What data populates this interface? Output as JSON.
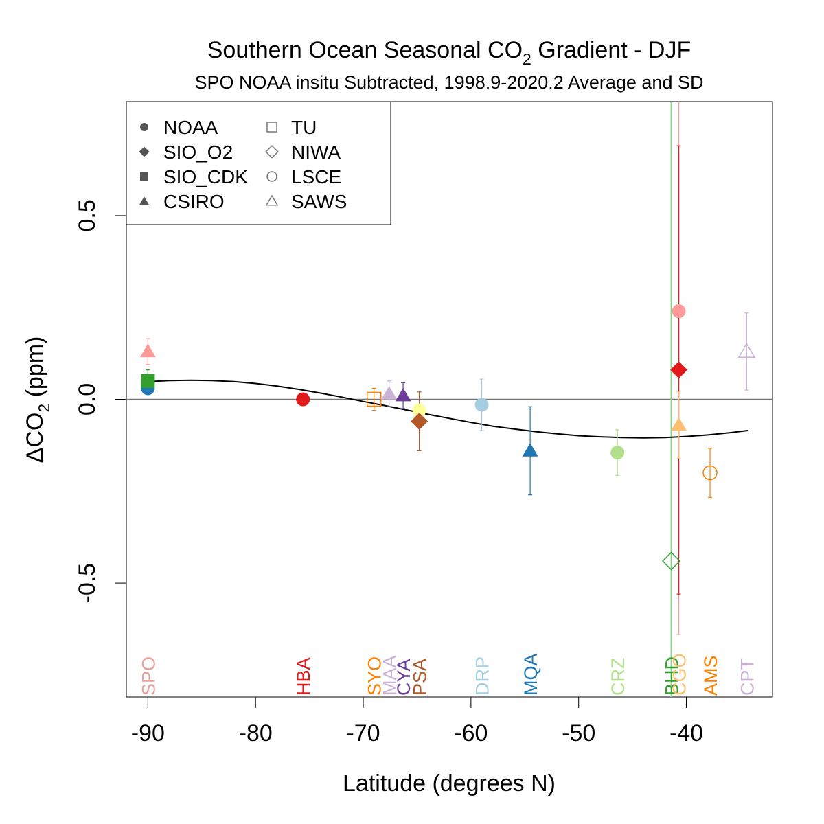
{
  "chart_data": {
    "type": "scatter",
    "title": "Southern Ocean Seasonal CO",
    "title_sub": "2",
    "title_rest": " Gradient - DJF",
    "subtitle": "SPO NOAA insitu Subtracted, 1998.9-2020.2 Average and SD",
    "xlabel": "Latitude (degrees N)",
    "ylabel_prefix": "ΔCO",
    "ylabel_sub": "2",
    "ylabel_suffix": " (ppm)",
    "xlim": [
      -92,
      -32
    ],
    "ylim": [
      -0.81,
      0.81
    ],
    "xticks": [
      -90,
      -80,
      -70,
      -60,
      -50,
      -40
    ],
    "xtick_labels": [
      "-90",
      "-80",
      "-70",
      "-60",
      "-50",
      "-40"
    ],
    "yticks": [
      -0.5,
      0.0,
      0.5
    ],
    "ytick_labels": [
      "-0.5",
      "0.0",
      "0.5"
    ],
    "grid": false,
    "legend_placement": "top-left",
    "legend": [
      {
        "name": "NOAA",
        "marker": "circle",
        "filled": true
      },
      {
        "name": "SIO_O2",
        "marker": "diamond",
        "filled": true
      },
      {
        "name": "SIO_CDK",
        "marker": "square",
        "filled": true
      },
      {
        "name": "CSIRO",
        "marker": "triangle",
        "filled": true
      },
      {
        "name": "TU",
        "marker": "square",
        "filled": false
      },
      {
        "name": "NIWA",
        "marker": "diamond",
        "filled": false
      },
      {
        "name": "LSCE",
        "marker": "circle",
        "filled": false
      },
      {
        "name": "SAWS",
        "marker": "triangle",
        "filled": false
      }
    ],
    "reference_line_y": 0.0,
    "vertical_line": {
      "x": -41.4,
      "color": "#8fd18f"
    },
    "fit_curve": {
      "x": [
        -90,
        -88,
        -86,
        -84,
        -82,
        -80,
        -78,
        -76,
        -74,
        -72,
        -70,
        -68,
        -66,
        -64,
        -62,
        -60,
        -58,
        -56,
        -54,
        -52,
        -50,
        -48,
        -46,
        -44,
        -42,
        -40,
        -38,
        -36,
        -34.3
      ],
      "y": [
        0.048,
        0.051,
        0.052,
        0.051,
        0.048,
        0.043,
        0.036,
        0.027,
        0.017,
        0.006,
        -0.006,
        -0.017,
        -0.029,
        -0.041,
        -0.052,
        -0.063,
        -0.073,
        -0.081,
        -0.088,
        -0.094,
        -0.099,
        -0.102,
        -0.104,
        -0.105,
        -0.104,
        -0.101,
        -0.097,
        -0.091,
        -0.085
      ]
    },
    "points": [
      {
        "station": "SPO",
        "lab": "NOAA",
        "marker": "circle",
        "filled": true,
        "color": "#1f78b4",
        "x": -90.0,
        "y": 0.03,
        "sd": 0.0
      },
      {
        "station": "SPO",
        "lab": "SIO_CDK",
        "marker": "square",
        "filled": true,
        "color": "#33a02c",
        "x": -90.0,
        "y": 0.05,
        "sd": 0.03
      },
      {
        "station": "SPO",
        "lab": "CSIRO",
        "marker": "triangle",
        "filled": true,
        "color": "#fb9a99",
        "x": -90.0,
        "y": 0.13,
        "sd": 0.035
      },
      {
        "station": "HBA",
        "lab": "NOAA",
        "marker": "circle",
        "filled": true,
        "color": "#e31a1c",
        "x": -75.6,
        "y": 0.0,
        "sd": 0.015
      },
      {
        "station": "SYO",
        "lab": "TU",
        "marker": "square",
        "filled": false,
        "color": "#ff7f00",
        "x": -69.0,
        "y": 0.0,
        "sd": 0.03
      },
      {
        "station": "MAA",
        "lab": "CSIRO",
        "marker": "triangle",
        "filled": true,
        "color": "#cab2d6",
        "x": -67.6,
        "y": 0.015,
        "sd": 0.035
      },
      {
        "station": "CYA",
        "lab": "CSIRO",
        "marker": "triangle",
        "filled": true,
        "color": "#6a3d9a",
        "x": -66.3,
        "y": 0.01,
        "sd": 0.035
      },
      {
        "station": "PSA",
        "lab": "NOAA",
        "marker": "circle",
        "filled": true,
        "color": "#ffff99",
        "x": -64.8,
        "y": -0.03,
        "sd": 0.0
      },
      {
        "station": "PSA",
        "lab": "SIO_O2",
        "marker": "diamond",
        "filled": true,
        "color": "#b15928",
        "x": -64.8,
        "y": -0.06,
        "sd": 0.08
      },
      {
        "station": "DRP",
        "lab": "NOAA",
        "marker": "circle",
        "filled": true,
        "color": "#a6cee3",
        "x": -59.0,
        "y": -0.015,
        "sd": 0.07
      },
      {
        "station": "MQA",
        "lab": "CSIRO",
        "marker": "triangle",
        "filled": true,
        "color": "#1f78b4",
        "x": -54.5,
        "y": -0.14,
        "sd": 0.12
      },
      {
        "station": "CRZ",
        "lab": "NOAA",
        "marker": "circle",
        "filled": true,
        "color": "#b2df8a",
        "x": -46.4,
        "y": -0.145,
        "sd": 0.062
      },
      {
        "station": "BHD",
        "lab": "NIWA",
        "marker": "diamond",
        "filled": false,
        "color": "#33a02c",
        "x": -41.4,
        "y": -0.44,
        "sd": 0.0
      },
      {
        "station": "CGO",
        "lab": "NOAA",
        "marker": "circle",
        "filled": true,
        "color": "#fb9a99",
        "x": -40.7,
        "y": 0.24,
        "sd": 0.88
      },
      {
        "station": "CGO",
        "lab": "SIO_O2",
        "marker": "diamond",
        "filled": true,
        "color": "#e31a1c",
        "x": -40.7,
        "y": 0.08,
        "sd": 0.61
      },
      {
        "station": "CGO",
        "lab": "CSIRO",
        "marker": "triangle",
        "filled": true,
        "color": "#fdbf6f",
        "x": -40.7,
        "y": -0.07,
        "sd": 0.09
      },
      {
        "station": "AMS",
        "lab": "LSCE",
        "marker": "circle",
        "filled": false,
        "color": "#ff7f00",
        "x": -37.8,
        "y": -0.2,
        "sd": 0.067
      },
      {
        "station": "CPT",
        "lab": "SAWS",
        "marker": "triangle",
        "filled": false,
        "color": "#cab2d6",
        "x": -34.4,
        "y": 0.13,
        "sd": 0.105
      }
    ],
    "station_labels": [
      {
        "name": "SPO",
        "x": -90.0,
        "color": "#e8a09a"
      },
      {
        "name": "HBA",
        "x": -75.6,
        "color": "#e31a1c"
      },
      {
        "name": "SYO",
        "x": -69.0,
        "color": "#ff7f00"
      },
      {
        "name": "MAA",
        "x": -67.6,
        "color": "#cab2d6"
      },
      {
        "name": "CYA",
        "x": -66.3,
        "color": "#6a3d9a"
      },
      {
        "name": "PSA",
        "x": -64.8,
        "color": "#b15928"
      },
      {
        "name": "DRP",
        "x": -59.0,
        "color": "#a6cee3"
      },
      {
        "name": "MQA",
        "x": -54.5,
        "color": "#1f78b4"
      },
      {
        "name": "CRZ",
        "x": -46.4,
        "color": "#b2df8a"
      },
      {
        "name": "BHD",
        "x": -41.4,
        "color": "#33a02c"
      },
      {
        "name": "CGO",
        "x": -40.7,
        "color": "#fdbf6f"
      },
      {
        "name": "AMS",
        "x": -37.8,
        "color": "#ff7f00"
      },
      {
        "name": "CPT",
        "x": -34.4,
        "color": "#cab2d6"
      }
    ]
  }
}
